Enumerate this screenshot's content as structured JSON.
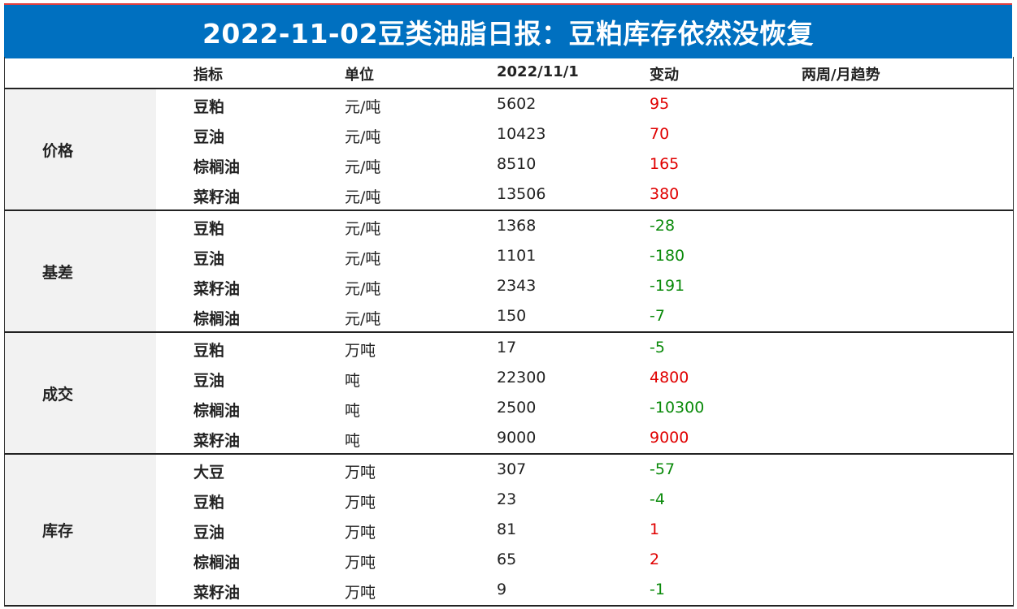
{
  "title": "2022-11-02豆类油脂日报：豆粕库存依然没恢复",
  "headers": {
    "indicator": "指标",
    "unit": "单位",
    "date": "2022/11/1",
    "change": "变动",
    "trend": "两周/月趋势"
  },
  "colors": {
    "title_bg": "#0070c0",
    "up": "#e00000",
    "down": "#0a8a0a",
    "label_bg": "#f2f2f2"
  },
  "sections": [
    {
      "label": "价格",
      "rows": [
        {
          "name": "豆粕",
          "unit": "元/吨",
          "value": "5602",
          "change": "95",
          "dir": "up"
        },
        {
          "name": "豆油",
          "unit": "元/吨",
          "value": "10423",
          "change": "70",
          "dir": "up"
        },
        {
          "name": "棕榈油",
          "unit": "元/吨",
          "value": "8510",
          "change": "165",
          "dir": "up"
        },
        {
          "name": "菜籽油",
          "unit": "元/吨",
          "value": "13506",
          "change": "380",
          "dir": "up"
        }
      ]
    },
    {
      "label": "基差",
      "rows": [
        {
          "name": "豆粕",
          "unit": "元/吨",
          "value": "1368",
          "change": "-28",
          "dir": "down"
        },
        {
          "name": "豆油",
          "unit": "元/吨",
          "value": "1101",
          "change": "-180",
          "dir": "down"
        },
        {
          "name": "菜籽油",
          "unit": "元/吨",
          "value": "2343",
          "change": "-191",
          "dir": "down"
        },
        {
          "name": "棕榈油",
          "unit": "元/吨",
          "value": "150",
          "change": "-7",
          "dir": "down"
        }
      ]
    },
    {
      "label": "成交",
      "rows": [
        {
          "name": "豆粕",
          "unit": "万吨",
          "value": "17",
          "change": "-5",
          "dir": "down"
        },
        {
          "name": "豆油",
          "unit": "吨",
          "value": "22300",
          "change": "4800",
          "dir": "up"
        },
        {
          "name": "棕榈油",
          "unit": "吨",
          "value": "2500",
          "change": "-10300",
          "dir": "down"
        },
        {
          "name": "菜籽油",
          "unit": "吨",
          "value": "9000",
          "change": "9000",
          "dir": "up"
        }
      ]
    },
    {
      "label": "库存",
      "rows": [
        {
          "name": "大豆",
          "unit": "万吨",
          "value": "307",
          "change": "-57",
          "dir": "down"
        },
        {
          "name": "豆粕",
          "unit": "万吨",
          "value": "23",
          "change": "-4",
          "dir": "down"
        },
        {
          "name": "豆油",
          "unit": "万吨",
          "value": "81",
          "change": "1",
          "dir": "up"
        },
        {
          "name": "棕榈油",
          "unit": "万吨",
          "value": "65",
          "change": "2",
          "dir": "up"
        },
        {
          "name": "菜籽油",
          "unit": "万吨",
          "value": "9",
          "change": "-1",
          "dir": "down"
        }
      ]
    }
  ]
}
